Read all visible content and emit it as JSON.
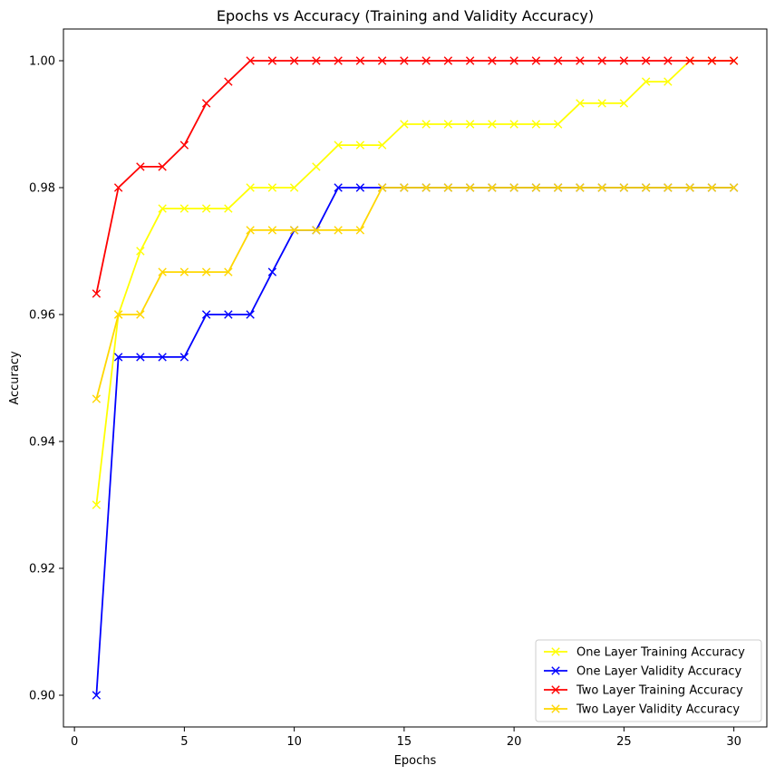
{
  "chart_data": {
    "type": "line",
    "title": "Epochs vs Accuracy (Training and Validity Accuracy)",
    "xlabel": "Epochs",
    "ylabel": "Accuracy",
    "xlim": [
      -0.5,
      31.5
    ],
    "ylim": [
      0.895,
      1.005
    ],
    "xticks": [
      0,
      5,
      10,
      15,
      20,
      25,
      30
    ],
    "yticks": [
      0.9,
      0.92,
      0.94,
      0.96,
      0.98,
      1.0
    ],
    "ytick_labels": [
      "0.90",
      "0.92",
      "0.94",
      "0.96",
      "0.98",
      "1.00"
    ],
    "grid": false,
    "legend_position": "lower-right",
    "marker": "x",
    "x": [
      1,
      2,
      3,
      4,
      5,
      6,
      7,
      8,
      9,
      10,
      11,
      12,
      13,
      14,
      15,
      16,
      17,
      18,
      19,
      20,
      21,
      22,
      23,
      24,
      25,
      26,
      27,
      28,
      29,
      30
    ],
    "series": [
      {
        "name": "One Layer Training Accuracy",
        "color": "#ffff00",
        "values": [
          0.93,
          0.96,
          0.97,
          0.9767,
          0.9767,
          0.9767,
          0.9767,
          0.98,
          0.98,
          0.98,
          0.9833,
          0.9867,
          0.9867,
          0.9867,
          0.99,
          0.99,
          0.99,
          0.99,
          0.99,
          0.99,
          0.99,
          0.99,
          0.9933,
          0.9933,
          0.9933,
          0.9967,
          0.9967,
          1.0,
          1.0,
          1.0
        ]
      },
      {
        "name": "One Layer Validity Accuracy",
        "color": "#0000ff",
        "values": [
          0.9,
          0.9533,
          0.9533,
          0.9533,
          0.9533,
          0.96,
          0.96,
          0.96,
          0.9667,
          0.9733,
          0.9733,
          0.98,
          0.98,
          0.98,
          0.98,
          0.98,
          0.98,
          0.98,
          0.98,
          0.98,
          0.98,
          0.98,
          0.98,
          0.98,
          0.98,
          0.98,
          0.98,
          0.98,
          0.98,
          0.98
        ]
      },
      {
        "name": "Two Layer Training Accuracy",
        "color": "#ff0000",
        "values": [
          0.9633,
          0.98,
          0.9833,
          0.9833,
          0.9867,
          0.9933,
          0.9967,
          1.0,
          1.0,
          1.0,
          1.0,
          1.0,
          1.0,
          1.0,
          1.0,
          1.0,
          1.0,
          1.0,
          1.0,
          1.0,
          1.0,
          1.0,
          1.0,
          1.0,
          1.0,
          1.0,
          1.0,
          1.0,
          1.0,
          1.0
        ]
      },
      {
        "name": "Two Layer Validity Accuracy",
        "color": "#ffd700",
        "values": [
          0.9467,
          0.96,
          0.96,
          0.9667,
          0.9667,
          0.9667,
          0.9667,
          0.9733,
          0.9733,
          0.9733,
          0.9733,
          0.9733,
          0.9733,
          0.98,
          0.98,
          0.98,
          0.98,
          0.98,
          0.98,
          0.98,
          0.98,
          0.98,
          0.98,
          0.98,
          0.98,
          0.98,
          0.98,
          0.98,
          0.98,
          0.98
        ]
      }
    ]
  }
}
